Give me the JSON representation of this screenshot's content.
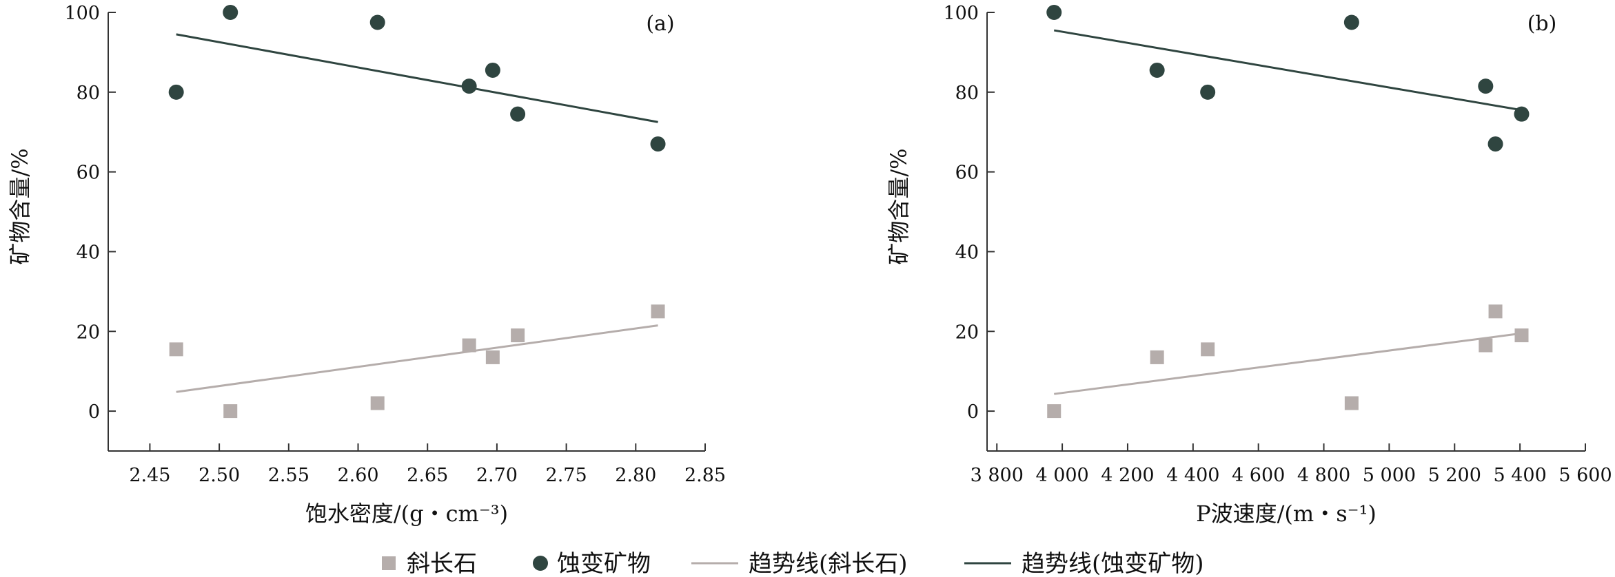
{
  "chart_data": [
    {
      "type": "scatter",
      "panel_label": "(a)",
      "xlabel": "饱水密度/(g・cm⁻³)",
      "ylabel": "矿物含量/%",
      "xlim": [
        2.42,
        2.85
      ],
      "ylim": [
        -10,
        100
      ],
      "x_ticks": [
        2.45,
        2.5,
        2.55,
        2.6,
        2.65,
        2.7,
        2.75,
        2.8,
        2.85
      ],
      "x_tick_labels": [
        "2.45",
        "2.50",
        "2.55",
        "2.60",
        "2.65",
        "2.70",
        "2.75",
        "2.80",
        "2.85"
      ],
      "y_ticks": [
        0,
        20,
        40,
        60,
        80,
        100
      ],
      "y_tick_labels": [
        "0",
        "20",
        "40",
        "60",
        "80",
        "100"
      ],
      "series": [
        {
          "name": "斜长石",
          "marker": "square",
          "color": "#b5adab",
          "x": [
            2.469,
            2.508,
            2.614,
            2.68,
            2.697,
            2.715,
            2.816
          ],
          "y": [
            15.5,
            0,
            2,
            16.5,
            13.5,
            19,
            25
          ]
        },
        {
          "name": "蚀变矿物",
          "marker": "circle",
          "color": "#2f4540",
          "x": [
            2.469,
            2.508,
            2.614,
            2.68,
            2.697,
            2.715,
            2.816
          ],
          "y": [
            80,
            100,
            97.5,
            81.5,
            85.5,
            74.5,
            67
          ]
        }
      ],
      "trendlines": [
        {
          "name": "趋势线(斜长石)",
          "color": "#b5adab",
          "x": [
            2.469,
            2.816
          ],
          "y": [
            4.8,
            21.5
          ]
        },
        {
          "name": "趋势线(蚀变矿物)",
          "color": "#2f4540",
          "x": [
            2.469,
            2.816
          ],
          "y": [
            94.5,
            72.5
          ]
        }
      ],
      "grid": false
    },
    {
      "type": "scatter",
      "panel_label": "(b)",
      "xlabel": "P波速度/(m・s⁻¹)",
      "ylabel": "矿物含量/%",
      "xlim": [
        3770,
        5600
      ],
      "ylim": [
        -10,
        100
      ],
      "x_ticks": [
        3800,
        4000,
        4200,
        4400,
        4600,
        4800,
        5000,
        5200,
        5400,
        5600
      ],
      "x_tick_labels": [
        "3 800",
        "4 000",
        "4 200",
        "4 400",
        "4 600",
        "4 800",
        "5 000",
        "5 200",
        "5 400",
        "5 600"
      ],
      "y_ticks": [
        0,
        20,
        40,
        60,
        80,
        100
      ],
      "y_tick_labels": [
        "0",
        "20",
        "40",
        "60",
        "80",
        "100"
      ],
      "series": [
        {
          "name": "斜长石",
          "marker": "square",
          "color": "#b5adab",
          "x": [
            3975,
            4290,
            4445,
            4885,
            5295,
            5325,
            5405
          ],
          "y": [
            0,
            13.5,
            15.5,
            2,
            16.5,
            25,
            19
          ]
        },
        {
          "name": "蚀变矿物",
          "marker": "circle",
          "color": "#2f4540",
          "x": [
            3975,
            4290,
            4445,
            4885,
            5295,
            5325,
            5405
          ],
          "y": [
            100,
            85.5,
            80,
            97.5,
            81.5,
            67,
            74.5
          ]
        }
      ],
      "trendlines": [
        {
          "name": "趋势线(斜长石)",
          "color": "#b5adab",
          "x": [
            3975,
            5405
          ],
          "y": [
            4.3,
            19.5
          ]
        },
        {
          "name": "趋势线(蚀变矿物)",
          "color": "#2f4540",
          "x": [
            3975,
            5405
          ],
          "y": [
            95.5,
            75.5
          ]
        }
      ],
      "grid": false
    }
  ],
  "legend": {
    "placement": "bottom-center",
    "items": [
      {
        "label": "斜长石",
        "kind": "square",
        "color": "#b5adab"
      },
      {
        "label": "蚀变矿物",
        "kind": "circle",
        "color": "#2f4540"
      },
      {
        "label": "趋势线(斜长石)",
        "kind": "line",
        "color": "#b5adab"
      },
      {
        "label": "趋势线(蚀变矿物)",
        "kind": "line",
        "color": "#2f4540"
      }
    ]
  }
}
